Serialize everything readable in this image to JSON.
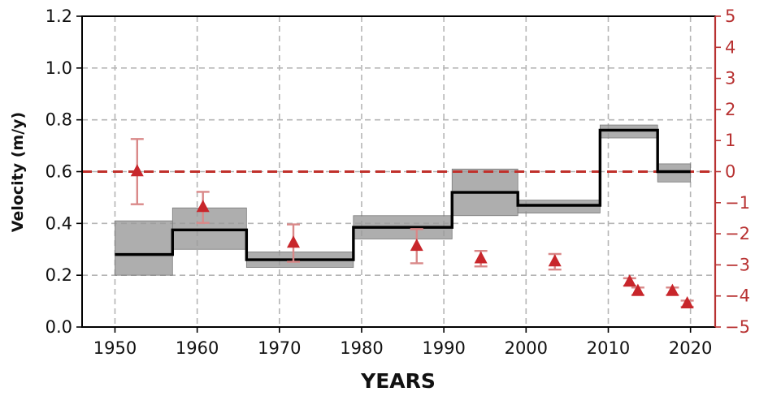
{
  "chart_data": {
    "type": "line",
    "title": "",
    "xlabel": "YEARS",
    "ylabel": "Velocity (m/y)",
    "xlim": [
      1946,
      2023
    ],
    "ylim": [
      0,
      1.2
    ],
    "y2lim": [
      -5,
      5
    ],
    "grid": true,
    "x_ticks": [
      1950,
      1960,
      1970,
      1980,
      1990,
      2000,
      2010,
      2020
    ],
    "y_ticks": [
      0.0,
      0.2,
      0.4,
      0.6,
      0.8,
      1.0,
      1.2
    ],
    "y2_ticks": [
      5,
      4,
      3,
      2,
      1,
      0,
      -1,
      -2,
      -3,
      -4,
      -5
    ],
    "y_tick_labels": [
      "0.0",
      "0.2",
      "0.4",
      "0.6",
      "0.8",
      "1.0",
      "1.2"
    ],
    "y2_tick_labels": [
      "5",
      "4",
      "3",
      "2",
      "1",
      "0",
      "−1",
      "−2",
      "−3",
      "−4",
      "−5"
    ],
    "velocity_steps": [
      {
        "x_start": 1950,
        "x_end": 1957,
        "value": 0.28,
        "low": 0.2,
        "high": 0.41
      },
      {
        "x_start": 1957,
        "x_end": 1966,
        "value": 0.375,
        "low": 0.3,
        "high": 0.46
      },
      {
        "x_start": 1966,
        "x_end": 1979,
        "value": 0.26,
        "low": 0.23,
        "high": 0.29
      },
      {
        "x_start": 1979,
        "x_end": 1991,
        "value": 0.385,
        "low": 0.34,
        "high": 0.43
      },
      {
        "x_start": 1991,
        "x_end": 1999,
        "value": 0.52,
        "low": 0.43,
        "high": 0.61
      },
      {
        "x_start": 1999,
        "x_end": 2009,
        "value": 0.47,
        "low": 0.44,
        "high": 0.49
      },
      {
        "x_start": 2009,
        "x_end": 2016,
        "value": 0.76,
        "low": 0.73,
        "high": 0.78
      },
      {
        "x_start": 2016,
        "x_end": 2020,
        "value": 0.6,
        "low": 0.56,
        "high": 0.63
      }
    ],
    "reference_line": {
      "y2": 0
    },
    "points": [
      {
        "x": 1952.7,
        "y2": 0.0,
        "err": 1.05
      },
      {
        "x": 1960.7,
        "y2": -1.15,
        "err": 0.5
      },
      {
        "x": 1971.7,
        "y2": -2.3,
        "err": 0.6
      },
      {
        "x": 1986.7,
        "y2": -2.4,
        "err": 0.55
      },
      {
        "x": 1994.5,
        "y2": -2.8,
        "err": 0.25
      },
      {
        "x": 2003.5,
        "y2": -2.9,
        "err": 0.25
      },
      {
        "x": 2012.6,
        "y2": -3.55,
        "err": 0.12
      },
      {
        "x": 2013.6,
        "y2": -3.85,
        "err": 0.12
      },
      {
        "x": 2017.8,
        "y2": -3.85,
        "err": 0.12
      },
      {
        "x": 2019.6,
        "y2": -4.25,
        "err": 0.1
      }
    ],
    "colors": {
      "step_line": "#000000",
      "uncertainty_band": "#9a9a9a",
      "points": "#c8262b",
      "errorbar": "#d98888",
      "reference_line": "#c0302b",
      "right_axis": "#b83232",
      "grid": "#b5b5b5"
    }
  }
}
